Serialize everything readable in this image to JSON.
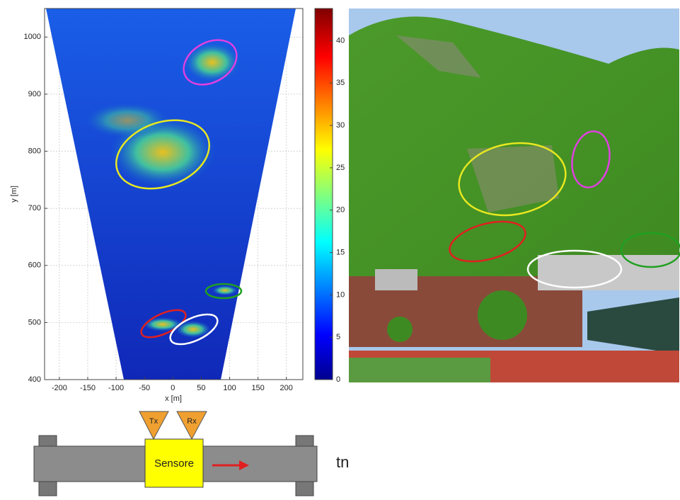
{
  "chart_data": {
    "type": "heatmap",
    "xlabel": "x [m]",
    "ylabel": "y [m]",
    "xlim": [
      -226,
      229
    ],
    "xticks": [
      -200,
      -150,
      -100,
      -50,
      0,
      50,
      100,
      150,
      200
    ],
    "ylim": [
      400,
      1050
    ],
    "yticks": [
      400,
      500,
      600,
      700,
      800,
      900,
      1000
    ],
    "grid": true,
    "colorbar": {
      "lim": [
        0,
        43.8
      ],
      "ticks": [
        0,
        5,
        10,
        15,
        20,
        25,
        30,
        35,
        40
      ]
    }
  },
  "diagram": {
    "tx": "Tx",
    "rx": "Rx",
    "sensor": "Sensore",
    "time": "tn"
  }
}
